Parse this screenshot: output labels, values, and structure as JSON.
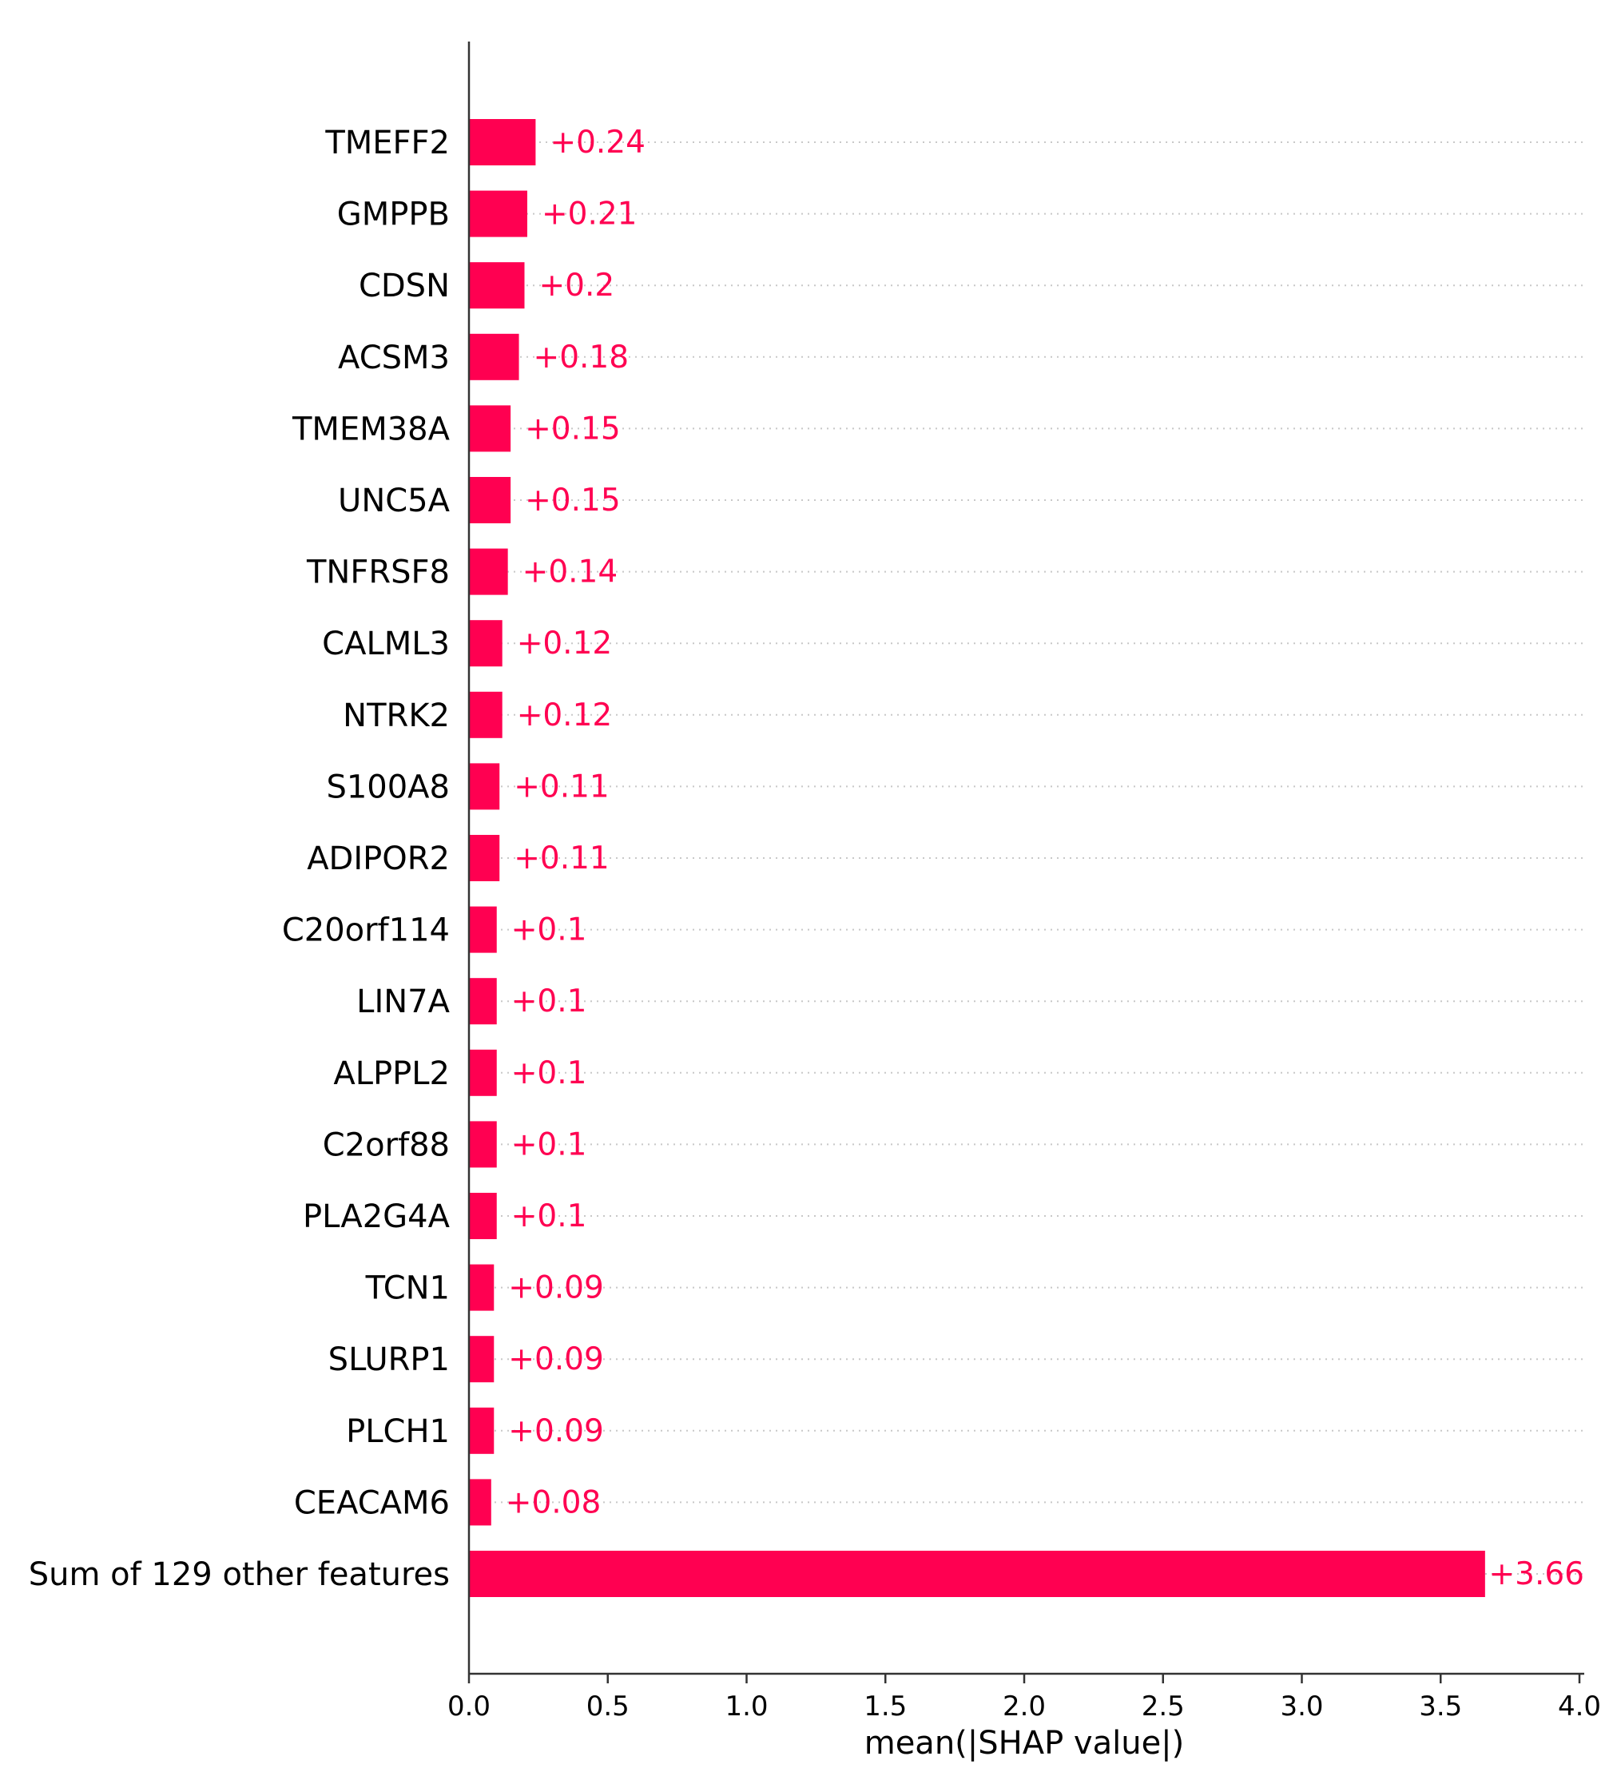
{
  "chart_data": {
    "type": "bar",
    "orientation": "horizontal",
    "categories": [
      "TMEFF2",
      "GMPPB",
      "CDSN",
      "ACSM3",
      "TMEM38A",
      "UNC5A",
      "TNFRSF8",
      "CALML3",
      "NTRK2",
      "S100A8",
      "ADIPOR2",
      "C20orf114",
      "LIN7A",
      "ALPPL2",
      "C2orf88",
      "PLA2G4A",
      "TCN1",
      "SLURP1",
      "PLCH1",
      "CEACAM6",
      "Sum of 129 other features"
    ],
    "values": [
      0.24,
      0.21,
      0.2,
      0.18,
      0.15,
      0.15,
      0.14,
      0.12,
      0.12,
      0.11,
      0.11,
      0.1,
      0.1,
      0.1,
      0.1,
      0.1,
      0.09,
      0.09,
      0.09,
      0.08,
      3.66
    ],
    "value_labels": [
      "+0.24",
      "+0.21",
      "+0.2",
      "+0.18",
      "+0.15",
      "+0.15",
      "+0.14",
      "+0.12",
      "+0.12",
      "+0.11",
      "+0.11",
      "+0.1",
      "+0.1",
      "+0.1",
      "+0.1",
      "+0.1",
      "+0.09",
      "+0.09",
      "+0.09",
      "+0.08",
      "+3.66"
    ],
    "xlabel": "mean(|SHAP value|)",
    "xlim": [
      0,
      4.0
    ],
    "xticks": [
      0.0,
      0.5,
      1.0,
      1.5,
      2.0,
      2.5,
      3.0,
      3.5,
      4.0
    ],
    "xtick_labels": [
      "0.0",
      "0.5",
      "1.0",
      "1.5",
      "2.0",
      "2.5",
      "3.0",
      "3.5",
      "4.0"
    ],
    "grid": "horizontal dotted",
    "bar_color": "#ff0051",
    "label_color": "#ff0051"
  }
}
